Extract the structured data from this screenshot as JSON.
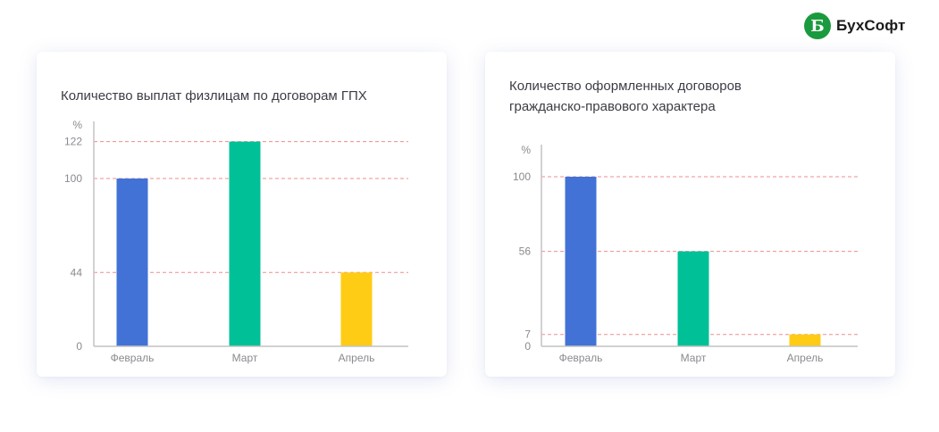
{
  "brand": {
    "logo_letter": "Б",
    "name": "БухСофт",
    "color": "#1a9a3e"
  },
  "chart_data": [
    {
      "type": "bar",
      "title": "Количество выплат физлицам по договорам ГПХ",
      "ylabel": "%",
      "categories": [
        "Февраль",
        "Март",
        "Апрель"
      ],
      "values": [
        100,
        122,
        44
      ],
      "colors": [
        "#4272d6",
        "#00c098",
        "#ffcc15"
      ],
      "yticks": [
        0,
        44,
        100,
        122
      ],
      "ylim": [
        0,
        130
      ],
      "reference_lines": [
        44,
        100,
        122
      ],
      "reference_line_color": "#f08c8c",
      "grid": false,
      "legend": "none"
    },
    {
      "type": "bar",
      "title": "Количество оформленных договоров гражданско-правового характера",
      "ylabel": "%",
      "categories": [
        "Февраль",
        "Март",
        "Апрель"
      ],
      "values": [
        100,
        56,
        7
      ],
      "colors": [
        "#4272d6",
        "#00c098",
        "#ffcc15"
      ],
      "yticks": [
        0,
        7,
        56,
        100
      ],
      "ylim": [
        0,
        115
      ],
      "reference_lines": [
        7,
        56,
        100
      ],
      "reference_line_color": "#f08c8c",
      "grid": false,
      "legend": "none"
    }
  ]
}
